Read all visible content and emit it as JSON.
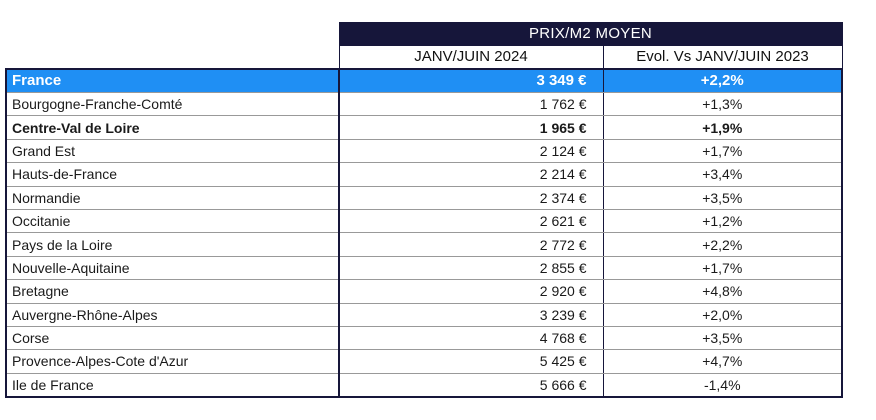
{
  "table": {
    "group_header": "PRIX/M2 MOYEN",
    "col_headers": [
      "JANV/JUIN 2024",
      "Evol. Vs JANV/JUIN 2023"
    ],
    "rows": [
      {
        "region": "France",
        "price": "3 349  €",
        "evol": "+2,2%"
      },
      {
        "region": "Bourgogne-Franche-Comté",
        "price": "1 762  €",
        "evol": "+1,3%"
      },
      {
        "region": "Centre-Val de Loire",
        "price": "1 965  €",
        "evol": "+1,9%"
      },
      {
        "region": "Grand Est",
        "price": "2 124  €",
        "evol": "+1,7%"
      },
      {
        "region": "Hauts-de-France",
        "price": "2 214  €",
        "evol": "+3,4%"
      },
      {
        "region": "Normandie",
        "price": "2 374  €",
        "evol": "+3,5%"
      },
      {
        "region": "Occitanie",
        "price": "2 621  €",
        "evol": "+1,2%"
      },
      {
        "region": "Pays de la Loire",
        "price": "2 772  €",
        "evol": "+2,2%"
      },
      {
        "region": "Nouvelle-Aquitaine",
        "price": "2 855  €",
        "evol": "+1,7%"
      },
      {
        "region": "Bretagne",
        "price": "2 920  €",
        "evol": "+4,8%"
      },
      {
        "region": "Auvergne-Rhône-Alpes",
        "price": "3 239  €",
        "evol": "+2,0%"
      },
      {
        "region": "Corse",
        "price": "4 768  €",
        "evol": "+3,5%"
      },
      {
        "region": "Provence-Alpes-Cote d'Azur",
        "price": "5 425  €",
        "evol": "+4,7%"
      },
      {
        "region": "Ile de France",
        "price": "5 666  €",
        "evol": "-1,4%"
      }
    ]
  },
  "colors": {
    "header_bg": "#16163a",
    "highlight_bg": "#1f8ff4"
  }
}
